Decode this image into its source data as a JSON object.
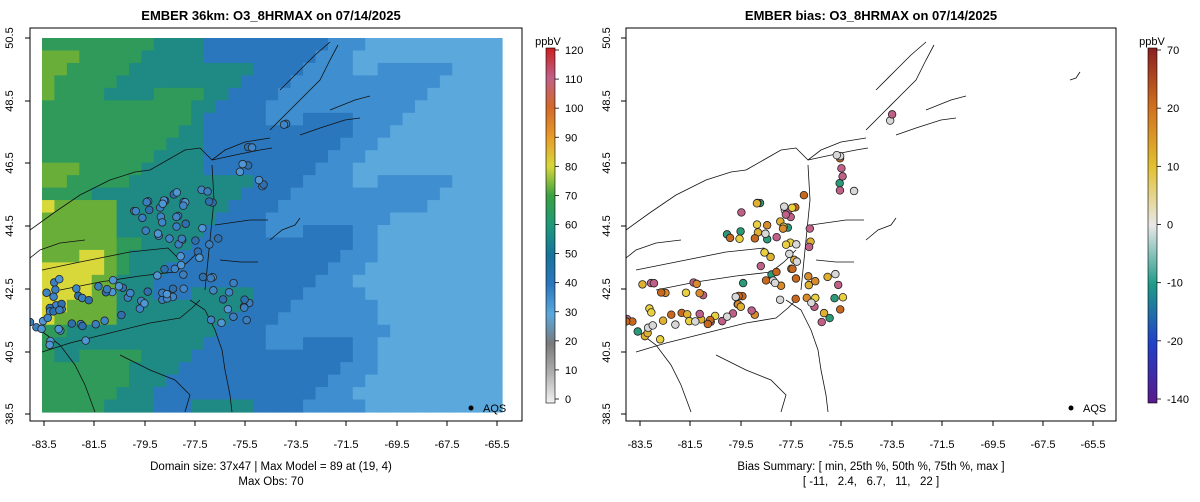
{
  "left_panel": {
    "title": "EMBER 36km: O3_8HRMAX on 07/14/2025",
    "x_ticks": [
      "-83.5",
      "-81.5",
      "-79.5",
      "-77.5",
      "-75.5",
      "-73.5",
      "-71.5",
      "-69.5",
      "-67.5",
      "-65.5"
    ],
    "y_ticks": [
      "38.5",
      "40.5",
      "42.5",
      "44.5",
      "46.5",
      "48.5",
      "50.5"
    ],
    "colorbar": {
      "unit": "ppbV",
      "ticks": [
        "0",
        "10",
        "20",
        "30",
        "40",
        "50",
        "60",
        "70",
        "80",
        "90",
        "100",
        "110",
        "120"
      ],
      "stops": [
        "#f2f2f2",
        "#b0b0b0",
        "#7a7a7a",
        "#5aa8dc",
        "#2b77bd",
        "#17729b",
        "#1e9a7a",
        "#3aa043",
        "#d8d83a",
        "#e89a2a",
        "#d2682a",
        "#c06088",
        "#cc1f1f"
      ]
    },
    "legend_label": "AQS",
    "footer_line1": "Domain size: 37x47 | Max Model = 89 at (19, 4)",
    "footer_line2": "Max Obs: 70"
  },
  "right_panel": {
    "title": "EMBER bias: O3_8HRMAX on 07/14/2025",
    "x_ticks": [
      "-83.5",
      "-81.5",
      "-79.5",
      "-77.5",
      "-75.5",
      "-73.5",
      "-71.5",
      "-69.5",
      "-67.5",
      "-65.5"
    ],
    "y_ticks": [
      "38.5",
      "40.5",
      "42.5",
      "44.5",
      "46.5",
      "48.5",
      "50.5"
    ],
    "colorbar": {
      "unit": "ppbV",
      "ticks": [
        "-140",
        "-20",
        "-10",
        "0",
        "10",
        "20",
        "70"
      ],
      "stops": [
        "#5a1a8a",
        "#2040c8",
        "#1f9a88",
        "#e8e8e8",
        "#e2c030",
        "#d07020",
        "#8a2020"
      ]
    },
    "legend_label": "AQS",
    "footer_line1": "Bias Summary: [ min, 25th %, 50th %, 75th %, max ]",
    "footer_line2": "[ -11,   2.4,   6.7,   11,   22 ]"
  }
}
